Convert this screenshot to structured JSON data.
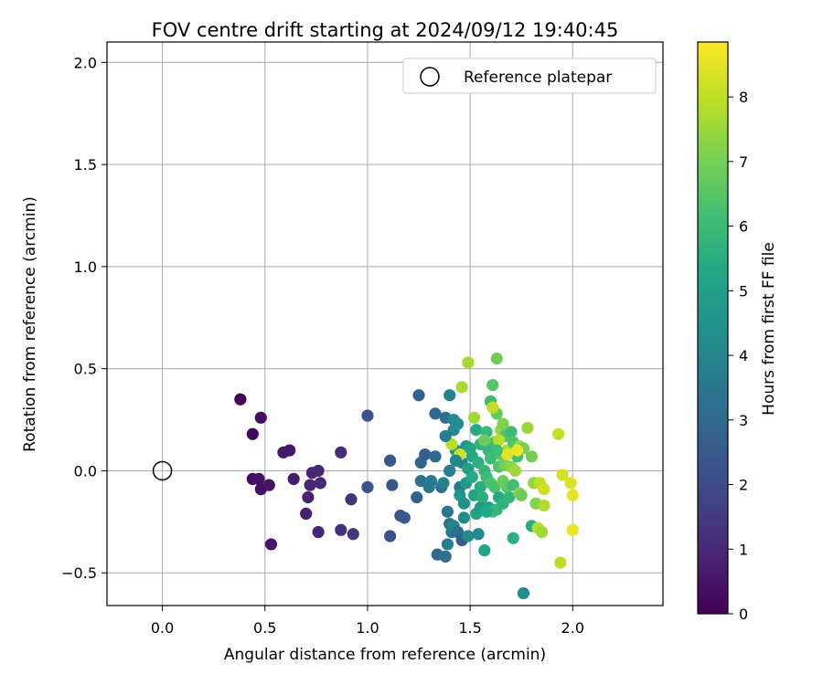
{
  "chart_data": {
    "type": "scatter",
    "title": "FOV centre drift starting at 2024/09/12 19:40:45",
    "xlabel": "Angular distance from reference (arcmin)",
    "ylabel": "Rotation from reference (arcmin)",
    "xlim": [
      -0.27,
      2.44
    ],
    "ylim": [
      -0.66,
      2.1
    ],
    "xticks": [
      0.0,
      0.5,
      1.0,
      1.5,
      2.0
    ],
    "xtick_labels": [
      "0.0",
      "0.5",
      "1.0",
      "1.5",
      "2.0"
    ],
    "yticks": [
      -0.5,
      0.0,
      0.5,
      1.0,
      1.5,
      2.0
    ],
    "ytick_labels": [
      "−0.5",
      "0.0",
      "0.5",
      "1.0",
      "1.5",
      "2.0"
    ],
    "grid": true,
    "legend": {
      "placement": "top-right",
      "entries": [
        "Reference platepar"
      ]
    },
    "reference_point": {
      "x": 0.0,
      "y": 0.0
    },
    "colorbar": {
      "label": "Hours from first FF file",
      "colormap": "viridis",
      "range": [
        0,
        8.85
      ],
      "ticks": [
        0,
        1,
        2,
        3,
        4,
        5,
        6,
        7,
        8
      ],
      "tick_labels": [
        "0",
        "1",
        "2",
        "3",
        "4",
        "5",
        "6",
        "7",
        "8"
      ]
    },
    "series": [
      {
        "color_by": "hours",
        "points": [
          {
            "x": 0.38,
            "y": 0.35,
            "c": 0.1
          },
          {
            "x": 0.44,
            "y": 0.18,
            "c": 0.2
          },
          {
            "x": 0.48,
            "y": 0.26,
            "c": 0.3
          },
          {
            "x": 0.44,
            "y": -0.04,
            "c": 0.3
          },
          {
            "x": 0.47,
            "y": -0.04,
            "c": 0.4
          },
          {
            "x": 0.48,
            "y": -0.09,
            "c": 0.4
          },
          {
            "x": 0.52,
            "y": -0.07,
            "c": 0.5
          },
          {
            "x": 0.53,
            "y": -0.36,
            "c": 0.5
          },
          {
            "x": 0.59,
            "y": 0.09,
            "c": 0.6
          },
          {
            "x": 0.62,
            "y": 0.1,
            "c": 0.6
          },
          {
            "x": 0.64,
            "y": -0.04,
            "c": 0.7
          },
          {
            "x": 0.7,
            "y": -0.21,
            "c": 0.8
          },
          {
            "x": 0.71,
            "y": -0.13,
            "c": 0.8
          },
          {
            "x": 0.72,
            "y": -0.07,
            "c": 0.9
          },
          {
            "x": 0.73,
            "y": -0.01,
            "c": 0.9
          },
          {
            "x": 0.76,
            "y": 0.0,
            "c": 1.0
          },
          {
            "x": 0.77,
            "y": -0.06,
            "c": 1.0
          },
          {
            "x": 0.76,
            "y": -0.3,
            "c": 1.0
          },
          {
            "x": 0.87,
            "y": 0.09,
            "c": 1.1
          },
          {
            "x": 0.87,
            "y": -0.29,
            "c": 1.2
          },
          {
            "x": 0.92,
            "y": -0.14,
            "c": 1.3
          },
          {
            "x": 0.93,
            "y": -0.31,
            "c": 1.4
          },
          {
            "x": 1.0,
            "y": 0.27,
            "c": 2.2
          },
          {
            "x": 1.0,
            "y": -0.08,
            "c": 2.3
          },
          {
            "x": 1.11,
            "y": 0.05,
            "c": 2.4
          },
          {
            "x": 1.12,
            "y": -0.07,
            "c": 2.4
          },
          {
            "x": 1.11,
            "y": -0.32,
            "c": 2.2
          },
          {
            "x": 1.16,
            "y": -0.22,
            "c": 2.3
          },
          {
            "x": 1.18,
            "y": -0.23,
            "c": 2.4
          },
          {
            "x": 1.25,
            "y": 0.37,
            "c": 2.8
          },
          {
            "x": 1.24,
            "y": -0.13,
            "c": 2.8
          },
          {
            "x": 1.26,
            "y": 0.04,
            "c": 2.9
          },
          {
            "x": 1.28,
            "y": 0.08,
            "c": 2.6
          },
          {
            "x": 1.26,
            "y": -0.05,
            "c": 3.3
          },
          {
            "x": 1.3,
            "y": -0.08,
            "c": 3.5
          },
          {
            "x": 1.31,
            "y": -0.05,
            "c": 3.6
          },
          {
            "x": 1.33,
            "y": 0.28,
            "c": 3.0
          },
          {
            "x": 1.33,
            "y": 0.07,
            "c": 3.0
          },
          {
            "x": 1.34,
            "y": -0.41,
            "c": 3.0
          },
          {
            "x": 1.36,
            "y": -0.08,
            "c": 3.3
          },
          {
            "x": 1.38,
            "y": 0.26,
            "c": 3.2
          },
          {
            "x": 1.38,
            "y": -0.42,
            "c": 3.2
          },
          {
            "x": 1.39,
            "y": -0.2,
            "c": 3.5
          },
          {
            "x": 1.39,
            "y": -0.36,
            "c": 3.8
          },
          {
            "x": 1.4,
            "y": -0.26,
            "c": 3.4
          },
          {
            "x": 1.41,
            "y": -0.3,
            "c": 3.6
          },
          {
            "x": 1.4,
            "y": 0.37,
            "c": 3.9
          },
          {
            "x": 1.42,
            "y": 0.2,
            "c": 4.1
          },
          {
            "x": 1.42,
            "y": 0.25,
            "c": 4.2
          },
          {
            "x": 1.42,
            "y": -0.27,
            "c": 4.0
          },
          {
            "x": 1.43,
            "y": 0.1,
            "c": 4.5
          },
          {
            "x": 1.44,
            "y": 0.23,
            "c": 4.4
          },
          {
            "x": 1.44,
            "y": -0.3,
            "c": 3.2
          },
          {
            "x": 1.45,
            "y": -0.08,
            "c": 3.6
          },
          {
            "x": 1.46,
            "y": 0.04,
            "c": 4.0
          },
          {
            "x": 1.46,
            "y": -0.34,
            "c": 2.6
          },
          {
            "x": 1.47,
            "y": -0.23,
            "c": 4.2
          },
          {
            "x": 1.48,
            "y": 0.12,
            "c": 4.6
          },
          {
            "x": 1.48,
            "y": -0.06,
            "c": 4.8
          },
          {
            "x": 1.49,
            "y": 0.01,
            "c": 5.0
          },
          {
            "x": 1.49,
            "y": -0.32,
            "c": 4.3
          },
          {
            "x": 1.5,
            "y": 0.11,
            "c": 5.2
          },
          {
            "x": 1.51,
            "y": 0.07,
            "c": 5.3
          },
          {
            "x": 1.52,
            "y": -0.12,
            "c": 5.1
          },
          {
            "x": 1.52,
            "y": 0.26,
            "c": 7.6
          },
          {
            "x": 1.53,
            "y": 0.2,
            "c": 5.4
          },
          {
            "x": 1.54,
            "y": 0.04,
            "c": 5.6
          },
          {
            "x": 1.54,
            "y": -0.31,
            "c": 4.2
          },
          {
            "x": 1.55,
            "y": -0.08,
            "c": 5.5
          },
          {
            "x": 1.55,
            "y": 0.13,
            "c": 5.7
          },
          {
            "x": 1.56,
            "y": -0.13,
            "c": 5.6
          },
          {
            "x": 1.57,
            "y": 0.0,
            "c": 5.8
          },
          {
            "x": 1.57,
            "y": -0.39,
            "c": 5.2
          },
          {
            "x": 1.58,
            "y": 0.19,
            "c": 5.9
          },
          {
            "x": 1.58,
            "y": -0.03,
            "c": 6.0
          },
          {
            "x": 1.59,
            "y": 0.1,
            "c": 5.8
          },
          {
            "x": 1.59,
            "y": -0.18,
            "c": 5.0
          },
          {
            "x": 1.6,
            "y": 0.34,
            "c": 6.0
          },
          {
            "x": 1.6,
            "y": 0.06,
            "c": 6.1
          },
          {
            "x": 1.61,
            "y": -0.2,
            "c": 6.2
          },
          {
            "x": 1.61,
            "y": 0.42,
            "c": 6.5
          },
          {
            "x": 1.62,
            "y": 0.14,
            "c": 6.3
          },
          {
            "x": 1.62,
            "y": -0.08,
            "c": 6.3
          },
          {
            "x": 1.63,
            "y": 0.28,
            "c": 6.7
          },
          {
            "x": 1.63,
            "y": 0.55,
            "c": 6.9
          },
          {
            "x": 1.63,
            "y": -0.19,
            "c": 5.9
          },
          {
            "x": 1.64,
            "y": 0.02,
            "c": 6.4
          },
          {
            "x": 1.64,
            "y": -0.13,
            "c": 5.4
          },
          {
            "x": 1.65,
            "y": 0.08,
            "c": 6.6
          },
          {
            "x": 1.65,
            "y": 0.2,
            "c": 7.4
          },
          {
            "x": 1.66,
            "y": -0.05,
            "c": 6.8
          },
          {
            "x": 1.66,
            "y": -0.16,
            "c": 5.7
          },
          {
            "x": 1.67,
            "y": 0.17,
            "c": 6.4
          },
          {
            "x": 1.67,
            "y": 0.03,
            "c": 7.0
          },
          {
            "x": 1.68,
            "y": -0.08,
            "c": 6.6
          },
          {
            "x": 1.68,
            "y": 0.1,
            "c": 7.8
          },
          {
            "x": 1.69,
            "y": -0.13,
            "c": 5.8
          },
          {
            "x": 1.7,
            "y": 0.19,
            "c": 6.0
          },
          {
            "x": 1.7,
            "y": 0.02,
            "c": 7.3
          },
          {
            "x": 1.71,
            "y": -0.07,
            "c": 6.1
          },
          {
            "x": 1.71,
            "y": 0.14,
            "c": 6.4
          },
          {
            "x": 1.72,
            "y": 0.0,
            "c": 7.6
          },
          {
            "x": 1.73,
            "y": 0.07,
            "c": 6.2
          },
          {
            "x": 1.74,
            "y": -0.11,
            "c": 7.2
          },
          {
            "x": 1.74,
            "y": 0.12,
            "c": 7.4
          },
          {
            "x": 1.75,
            "y": -0.12,
            "c": 6.9
          },
          {
            "x": 1.76,
            "y": 0.11,
            "c": 7.0
          },
          {
            "x": 1.76,
            "y": -0.6,
            "c": 4.3
          },
          {
            "x": 1.78,
            "y": 0.21,
            "c": 7.5
          },
          {
            "x": 1.8,
            "y": 0.07,
            "c": 7.0
          },
          {
            "x": 1.8,
            "y": -0.27,
            "c": 5.4
          },
          {
            "x": 1.81,
            "y": -0.06,
            "c": 7.4
          },
          {
            "x": 1.82,
            "y": -0.16,
            "c": 7.2
          },
          {
            "x": 1.83,
            "y": -0.28,
            "c": 7.9
          },
          {
            "x": 1.84,
            "y": -0.06,
            "c": 8.0
          },
          {
            "x": 1.85,
            "y": -0.3,
            "c": 7.6
          },
          {
            "x": 1.86,
            "y": -0.09,
            "c": 8.2
          },
          {
            "x": 1.86,
            "y": -0.17,
            "c": 7.8
          },
          {
            "x": 1.93,
            "y": 0.18,
            "c": 8.1
          },
          {
            "x": 1.94,
            "y": -0.45,
            "c": 7.9
          },
          {
            "x": 1.95,
            "y": -0.02,
            "c": 8.3
          },
          {
            "x": 1.99,
            "y": -0.06,
            "c": 8.4
          },
          {
            "x": 2.0,
            "y": -0.12,
            "c": 8.5
          },
          {
            "x": 2.0,
            "y": -0.29,
            "c": 8.6
          },
          {
            "x": 1.71,
            "y": -0.33,
            "c": 5.6
          },
          {
            "x": 1.53,
            "y": -0.21,
            "c": 5.2
          },
          {
            "x": 1.51,
            "y": -0.03,
            "c": 5.4
          },
          {
            "x": 1.49,
            "y": 0.53,
            "c": 7.6
          },
          {
            "x": 1.46,
            "y": 0.41,
            "c": 7.7
          },
          {
            "x": 1.41,
            "y": 0.13,
            "c": 7.9
          },
          {
            "x": 1.45,
            "y": 0.08,
            "c": 8.2
          },
          {
            "x": 1.61,
            "y": 0.31,
            "c": 8.0
          },
          {
            "x": 1.64,
            "y": 0.15,
            "c": 7.9
          },
          {
            "x": 1.68,
            "y": 0.08,
            "c": 8.4
          },
          {
            "x": 1.73,
            "y": 0.1,
            "c": 8.6
          },
          {
            "x": 1.45,
            "y": -0.12,
            "c": 4.7
          },
          {
            "x": 1.47,
            "y": -0.16,
            "c": 4.4
          },
          {
            "x": 1.55,
            "y": -0.18,
            "c": 4.9
          },
          {
            "x": 1.58,
            "y": -0.2,
            "c": 5.3
          },
          {
            "x": 1.37,
            "y": -0.06,
            "c": 3.9
          },
          {
            "x": 1.4,
            "y": 0.0,
            "c": 3.7
          },
          {
            "x": 1.43,
            "y": 0.05,
            "c": 4.1
          },
          {
            "x": 1.38,
            "y": 0.17,
            "c": 3.8
          },
          {
            "x": 1.6,
            "y": -0.06,
            "c": 6.3
          },
          {
            "x": 1.57,
            "y": 0.15,
            "c": 6.8
          },
          {
            "x": 1.63,
            "y": 0.1,
            "c": 6.1
          },
          {
            "x": 1.66,
            "y": 0.23,
            "c": 7.1
          }
        ]
      }
    ]
  }
}
